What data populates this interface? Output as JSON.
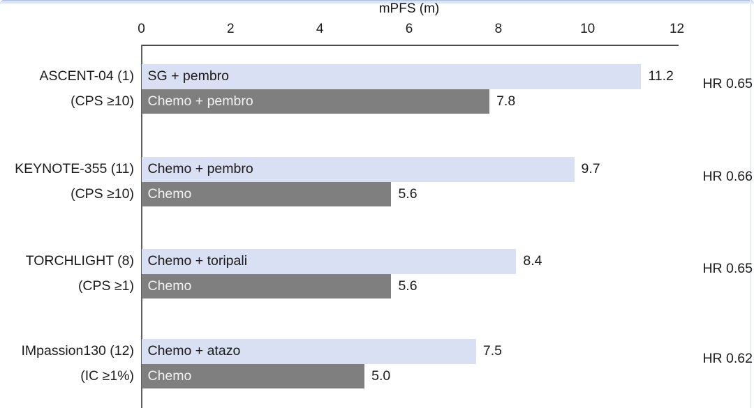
{
  "chart_data": {
    "type": "bar",
    "orientation": "horizontal",
    "title": "mPFS (m)",
    "xlim": [
      0,
      12
    ],
    "xticks": [
      "0",
      "2",
      "4",
      "6",
      "8",
      "10",
      "12"
    ],
    "xtick_values": [
      0,
      2,
      4,
      6,
      8,
      10,
      12
    ],
    "grid": false,
    "legend_position": "none",
    "bar_colors": {
      "experimental": "#dae0f3",
      "control": "#7f7f7f"
    },
    "bar_text_colors": {
      "experimental": "#1b1b1b",
      "control": "#f2f2f2"
    },
    "groups": [
      {
        "trial": "ASCENT-04 (1)",
        "population": "(CPS ≥10)",
        "hr_label": "HR 0.65",
        "bars": [
          {
            "role": "experimental",
            "label": "SG + pembro",
            "value": 11.2,
            "value_label": "11.2"
          },
          {
            "role": "control",
            "label": "Chemo + pembro",
            "value": 7.8,
            "value_label": "7.8"
          }
        ]
      },
      {
        "trial": "KEYNOTE-355 (11)",
        "population": "(CPS ≥10)",
        "hr_label": "HR 0.66",
        "bars": [
          {
            "role": "experimental",
            "label": "Chemo + pembro",
            "value": 9.7,
            "value_label": "9.7"
          },
          {
            "role": "control",
            "label": "Chemo",
            "value": 5.6,
            "value_label": "5.6"
          }
        ]
      },
      {
        "trial": "TORCHLIGHT (8)",
        "population": "(CPS ≥1)",
        "hr_label": "HR 0.65",
        "bars": [
          {
            "role": "experimental",
            "label": "Chemo + toripali",
            "value": 8.4,
            "value_label": "8.4"
          },
          {
            "role": "control",
            "label": "Chemo",
            "value": 5.6,
            "value_label": "5.6"
          }
        ]
      },
      {
        "trial": "IMpassion130 (12)",
        "population": "(IC ≥1%)",
        "hr_label": "HR 0.62",
        "bars": [
          {
            "role": "experimental",
            "label": "Chemo + atazo",
            "value": 7.5,
            "value_label": "7.5"
          },
          {
            "role": "control",
            "label": "Chemo",
            "value": 5.0,
            "value_label": "5.0"
          }
        ]
      }
    ]
  }
}
